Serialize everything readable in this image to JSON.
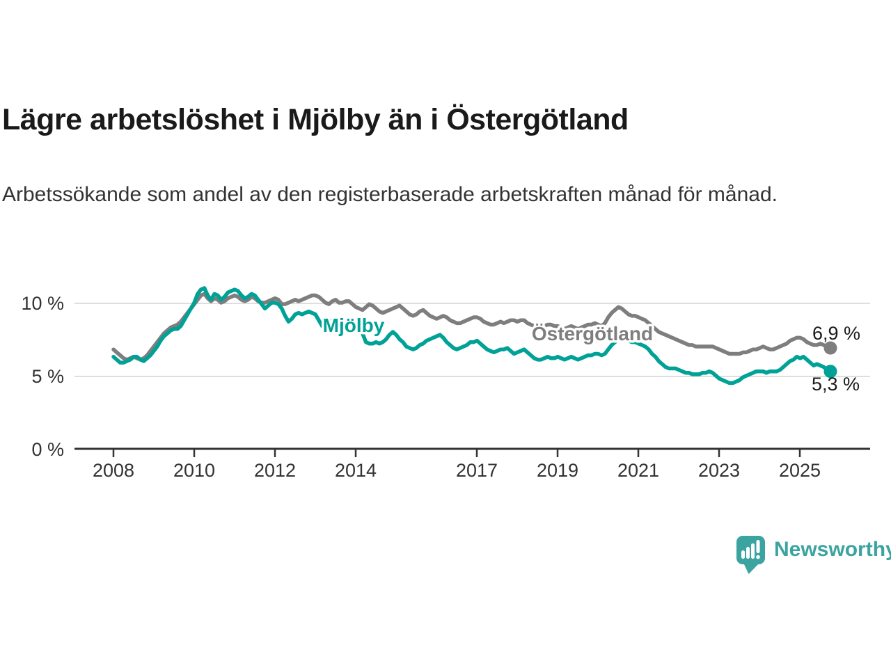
{
  "header": {
    "title": "Lägre arbetslöshet i Mjölby än i Östergötland",
    "subtitle": "Arbetssökande som andel av den registerbaserade arbetskraften månad för månad."
  },
  "chart_data": {
    "type": "line",
    "x_unit": "month",
    "start": "2008-01",
    "end": "2025-10",
    "ylim": [
      0,
      11.5
    ],
    "grid": "horizontal",
    "y_ticks": [
      {
        "value": 0,
        "label": "0 %"
      },
      {
        "value": 5,
        "label": "5 %"
      },
      {
        "value": 10,
        "label": "10 %"
      }
    ],
    "x_ticks": [
      {
        "year": 2008,
        "label": "2008"
      },
      {
        "year": 2010,
        "label": "2010"
      },
      {
        "year": 2012,
        "label": "2012"
      },
      {
        "year": 2014,
        "label": "2014"
      },
      {
        "year": 2017,
        "label": "2017"
      },
      {
        "year": 2019,
        "label": "2019"
      },
      {
        "year": 2021,
        "label": "2021"
      },
      {
        "year": 2023,
        "label": "2023"
      },
      {
        "year": 2025,
        "label": "2025"
      }
    ],
    "series": [
      {
        "name": "Mjölby",
        "color": "#00a196",
        "end_label": "5,3 %",
        "values": [
          6.3,
          6.1,
          5.9,
          5.9,
          6.0,
          6.1,
          6.3,
          6.3,
          6.1,
          6.0,
          6.2,
          6.4,
          6.7,
          7.0,
          7.4,
          7.7,
          7.9,
          8.1,
          8.2,
          8.2,
          8.4,
          8.8,
          9.2,
          9.6,
          10.0,
          10.6,
          10.9,
          11.0,
          10.5,
          10.2,
          10.6,
          10.5,
          10.2,
          10.4,
          10.7,
          10.8,
          10.9,
          10.8,
          10.5,
          10.3,
          10.4,
          10.6,
          10.5,
          10.2,
          9.9,
          9.6,
          9.8,
          10.0,
          10.0,
          9.9,
          9.6,
          9.1,
          8.7,
          8.9,
          9.2,
          9.3,
          9.2,
          9.3,
          9.4,
          9.3,
          9.2,
          8.8,
          8.4,
          8.6,
          8.8,
          8.7,
          8.6,
          8.5,
          8.6,
          8.7,
          8.6,
          8.4,
          8.3,
          8.1,
          7.9,
          7.3,
          7.2,
          7.2,
          7.3,
          7.2,
          7.3,
          7.5,
          7.8,
          8.0,
          7.8,
          7.5,
          7.3,
          7.0,
          6.9,
          6.8,
          6.9,
          7.1,
          7.2,
          7.4,
          7.5,
          7.6,
          7.7,
          7.8,
          7.6,
          7.3,
          7.1,
          6.9,
          6.8,
          6.9,
          7.0,
          7.1,
          7.3,
          7.3,
          7.4,
          7.2,
          7.0,
          6.8,
          6.7,
          6.6,
          6.7,
          6.8,
          6.8,
          6.9,
          6.7,
          6.5,
          6.6,
          6.7,
          6.8,
          6.6,
          6.4,
          6.2,
          6.1,
          6.1,
          6.2,
          6.3,
          6.2,
          6.2,
          6.3,
          6.2,
          6.1,
          6.2,
          6.3,
          6.2,
          6.1,
          6.2,
          6.3,
          6.4,
          6.4,
          6.5,
          6.5,
          6.4,
          6.5,
          6.8,
          7.1,
          7.3,
          7.5,
          7.6,
          7.5,
          7.4,
          7.3,
          7.3,
          7.2,
          7.1,
          7.0,
          6.8,
          6.5,
          6.3,
          6.0,
          5.8,
          5.6,
          5.5,
          5.5,
          5.5,
          5.4,
          5.3,
          5.2,
          5.2,
          5.1,
          5.1,
          5.1,
          5.2,
          5.2,
          5.3,
          5.2,
          5.0,
          4.8,
          4.7,
          4.6,
          4.5,
          4.5,
          4.6,
          4.7,
          4.9,
          5.0,
          5.1,
          5.2,
          5.3,
          5.3,
          5.3,
          5.2,
          5.3,
          5.3,
          5.3,
          5.4,
          5.6,
          5.8,
          6.0,
          6.1,
          6.3,
          6.2,
          6.3,
          6.1,
          5.9,
          5.7,
          5.8,
          5.7,
          5.6,
          5.4,
          5.3
        ]
      },
      {
        "name": "Östergötland",
        "color": "#7e7e7e",
        "end_label": "6,9 %",
        "values": [
          6.8,
          6.6,
          6.4,
          6.2,
          6.1,
          6.2,
          6.3,
          6.2,
          6.1,
          6.2,
          6.4,
          6.7,
          7.0,
          7.3,
          7.6,
          7.9,
          8.1,
          8.3,
          8.4,
          8.5,
          8.7,
          9.0,
          9.3,
          9.6,
          9.9,
          10.2,
          10.5,
          10.6,
          10.3,
          10.1,
          10.3,
          10.2,
          10.0,
          10.1,
          10.3,
          10.4,
          10.5,
          10.4,
          10.2,
          10.1,
          10.2,
          10.4,
          10.3,
          10.1,
          10.0,
          10.0,
          10.1,
          10.2,
          10.3,
          10.2,
          9.9,
          9.9,
          10.0,
          10.1,
          10.2,
          10.1,
          10.2,
          10.3,
          10.4,
          10.5,
          10.5,
          10.4,
          10.2,
          10.0,
          9.9,
          10.1,
          10.2,
          10.0,
          10.0,
          10.1,
          10.1,
          9.9,
          9.7,
          9.6,
          9.5,
          9.7,
          9.9,
          9.8,
          9.6,
          9.4,
          9.3,
          9.4,
          9.5,
          9.6,
          9.7,
          9.8,
          9.6,
          9.4,
          9.2,
          9.1,
          9.2,
          9.4,
          9.5,
          9.3,
          9.1,
          9.0,
          8.9,
          9.0,
          9.1,
          9.0,
          8.8,
          8.7,
          8.6,
          8.6,
          8.7,
          8.8,
          8.9,
          9.0,
          9.0,
          8.9,
          8.7,
          8.6,
          8.5,
          8.5,
          8.6,
          8.7,
          8.6,
          8.7,
          8.8,
          8.8,
          8.7,
          8.8,
          8.8,
          8.6,
          8.5,
          8.4,
          8.3,
          8.3,
          8.4,
          8.5,
          8.5,
          8.4,
          8.4,
          8.3,
          8.2,
          8.3,
          8.4,
          8.3,
          8.2,
          8.3,
          8.4,
          8.5,
          8.5,
          8.6,
          8.5,
          8.4,
          8.6,
          9.0,
          9.3,
          9.5,
          9.7,
          9.6,
          9.4,
          9.2,
          9.1,
          9.1,
          9.0,
          8.9,
          8.8,
          8.6,
          8.4,
          8.2,
          8.0,
          7.9,
          7.8,
          7.7,
          7.6,
          7.5,
          7.4,
          7.3,
          7.2,
          7.1,
          7.1,
          7.0,
          7.0,
          7.0,
          7.0,
          7.0,
          7.0,
          6.9,
          6.8,
          6.7,
          6.6,
          6.5,
          6.5,
          6.5,
          6.5,
          6.6,
          6.6,
          6.7,
          6.8,
          6.8,
          6.9,
          7.0,
          6.9,
          6.8,
          6.8,
          6.9,
          7.0,
          7.1,
          7.2,
          7.4,
          7.5,
          7.6,
          7.6,
          7.5,
          7.3,
          7.2,
          7.1,
          7.1,
          7.2,
          7.1,
          7.0,
          6.9
        ]
      }
    ]
  },
  "branding": {
    "logo_text": "Newsworthy",
    "brand_color": "#3ba3a0"
  }
}
